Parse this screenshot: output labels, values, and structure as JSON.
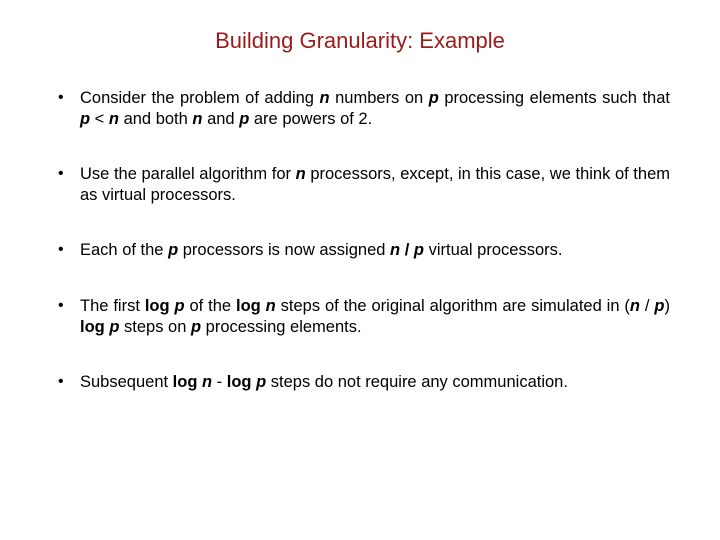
{
  "title_color": "#9b1b1b",
  "text_color": "#000000",
  "background_color": "#ffffff",
  "title": "Building Granularity: Example",
  "bullets": [
    {
      "segments": [
        {
          "t": "Consider the problem of adding "
        },
        {
          "t": "n",
          "cls": "bi"
        },
        {
          "t": " numbers on "
        },
        {
          "t": "p",
          "cls": "bi"
        },
        {
          "t": " processing elements such that "
        },
        {
          "t": "p",
          "cls": "bi"
        },
        {
          "t": " < "
        },
        {
          "t": "n",
          "cls": "bi"
        },
        {
          "t": " and both "
        },
        {
          "t": "n",
          "cls": "bi"
        },
        {
          "t": " and "
        },
        {
          "t": "p",
          "cls": "bi"
        },
        {
          "t": " are powers of 2."
        }
      ]
    },
    {
      "segments": [
        {
          "t": "Use the parallel algorithm for "
        },
        {
          "t": "n",
          "cls": "bi"
        },
        {
          "t": " processors, except, in this case, we think of them as virtual processors."
        }
      ]
    },
    {
      "segments": [
        {
          "t": "Each of the "
        },
        {
          "t": "p",
          "cls": "bi"
        },
        {
          "t": " processors is now assigned "
        },
        {
          "t": "n",
          "cls": "bi"
        },
        {
          "t": " "
        },
        {
          "t": "/",
          "cls": "b"
        },
        {
          "t": " "
        },
        {
          "t": "p",
          "cls": "bi"
        },
        {
          "t": " virtual processors."
        }
      ]
    },
    {
      "segments": [
        {
          "t": "The first "
        },
        {
          "t": "log ",
          "cls": "b"
        },
        {
          "t": "p",
          "cls": "bi"
        },
        {
          "t": " of the "
        },
        {
          "t": "log ",
          "cls": "b"
        },
        {
          "t": "n",
          "cls": "bi"
        },
        {
          "t": " steps of the original algorithm are simulated in ("
        },
        {
          "t": "n",
          "cls": "bi"
        },
        {
          "t": " / "
        },
        {
          "t": "p",
          "cls": "bi"
        },
        {
          "t": ") "
        },
        {
          "t": "log ",
          "cls": "b"
        },
        {
          "t": "p",
          "cls": "bi"
        },
        {
          "t": " steps on "
        },
        {
          "t": "p",
          "cls": "bi"
        },
        {
          "t": " processing elements."
        }
      ]
    },
    {
      "segments": [
        {
          "t": "Subsequent "
        },
        {
          "t": "log ",
          "cls": "b"
        },
        {
          "t": "n",
          "cls": "bi"
        },
        {
          "t": " - "
        },
        {
          "t": "log ",
          "cls": "b"
        },
        {
          "t": "p",
          "cls": "bi"
        },
        {
          "t": " steps do not require any communication."
        }
      ]
    }
  ]
}
